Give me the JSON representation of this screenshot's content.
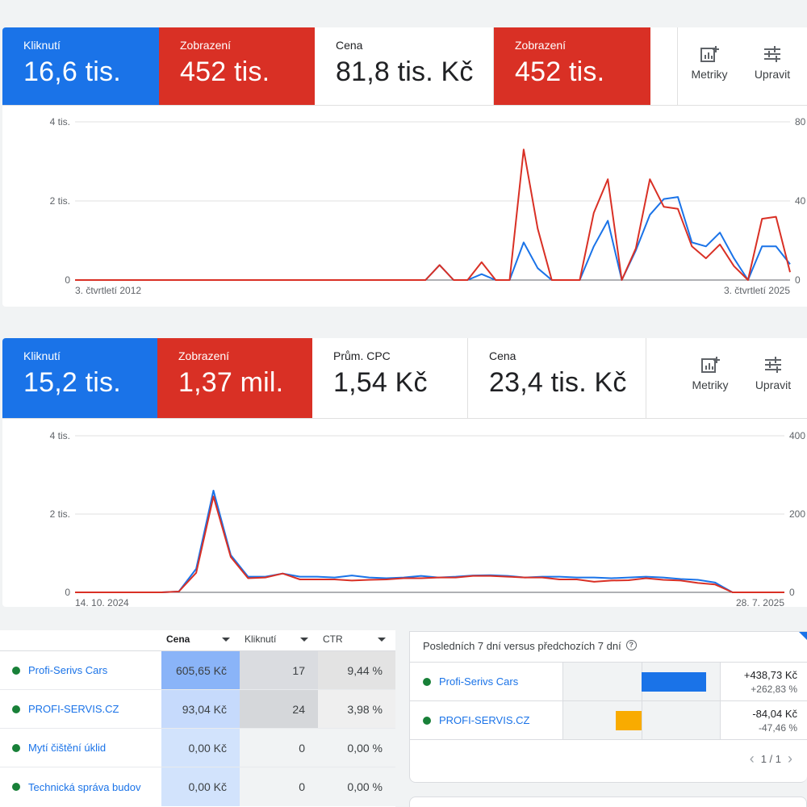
{
  "panel1": {
    "cards": [
      {
        "label": "Kliknutí",
        "value": "16,6 tis.",
        "color": "blue"
      },
      {
        "label": "Zobrazení",
        "value": "452 tis.",
        "color": "red"
      },
      {
        "label": "Cena",
        "value": "81,8 tis. Kč",
        "color": "white"
      },
      {
        "label": "Zobrazení",
        "value": "452 tis.",
        "color": "red"
      }
    ],
    "tools": {
      "metrics": "Metriky",
      "edit": "Upravit"
    }
  },
  "panel2": {
    "cards": [
      {
        "label": "Kliknutí",
        "value": "15,2 tis.",
        "color": "blue"
      },
      {
        "label": "Zobrazení",
        "value": "1,37 mil.",
        "color": "red"
      },
      {
        "label": "Prům. CPC",
        "value": "1,54 Kč",
        "color": "white"
      },
      {
        "label": "Cena",
        "value": "23,4 tis. Kč",
        "color": "white"
      }
    ],
    "tools": {
      "metrics": "Metriky",
      "edit": "Upravit"
    }
  },
  "chart_data": [
    {
      "type": "line",
      "yticks_left": [
        "0",
        "2 tis.",
        "4 tis."
      ],
      "yticks_right": [
        "0",
        "40",
        "80"
      ],
      "xlabels": [
        "3. čtvrtletí 2012",
        "3. čtvrtletí 2025"
      ],
      "ylim": [
        0,
        4000
      ],
      "series": [
        {
          "name": "Kliknutí",
          "color": "#1a73e8",
          "values": [
            0,
            0,
            0,
            0,
            0,
            0,
            0,
            0,
            0,
            0,
            0,
            0,
            0,
            0,
            0,
            0,
            0,
            0,
            0,
            0,
            0,
            0,
            0,
            0,
            0,
            0,
            380,
            0,
            0,
            150,
            0,
            0,
            950,
            300,
            0,
            0,
            0,
            850,
            1500,
            0,
            750,
            1650,
            2050,
            2100,
            950,
            850,
            1200,
            550,
            0,
            850,
            850,
            400
          ]
        },
        {
          "name": "Zobrazení",
          "color": "#d93025",
          "values": [
            0,
            0,
            0,
            0,
            0,
            0,
            0,
            0,
            0,
            0,
            0,
            0,
            0,
            0,
            0,
            0,
            0,
            0,
            0,
            0,
            0,
            0,
            0,
            0,
            0,
            0,
            380,
            0,
            0,
            450,
            0,
            0,
            3300,
            1300,
            0,
            0,
            0,
            1700,
            2550,
            0,
            800,
            2550,
            1850,
            1800,
            850,
            550,
            900,
            350,
            0,
            1550,
            1600,
            200
          ]
        }
      ]
    },
    {
      "type": "line",
      "yticks_left": [
        "0",
        "2 tis.",
        "4 tis."
      ],
      "yticks_right": [
        "0",
        "200",
        "400"
      ],
      "xlabels": [
        "14. 10. 2024",
        "28. 7. 2025"
      ],
      "ylim": [
        0,
        4000
      ],
      "series": [
        {
          "name": "Kliknutí",
          "color": "#1a73e8",
          "values": [
            0,
            0,
            0,
            0,
            0,
            0,
            20,
            600,
            2600,
            950,
            400,
            400,
            480,
            400,
            400,
            380,
            430,
            380,
            360,
            380,
            420,
            380,
            400,
            430,
            440,
            420,
            380,
            400,
            400,
            380,
            380,
            360,
            380,
            400,
            380,
            340,
            320,
            250,
            0,
            0,
            0,
            0
          ]
        },
        {
          "name": "Zobrazení",
          "color": "#d93025",
          "values": [
            0,
            0,
            0,
            0,
            0,
            0,
            20,
            500,
            2450,
            900,
            360,
            380,
            480,
            330,
            330,
            330,
            300,
            320,
            330,
            360,
            360,
            380,
            380,
            420,
            420,
            400,
            380,
            380,
            330,
            330,
            270,
            300,
            310,
            360,
            320,
            300,
            240,
            200,
            0,
            0,
            0,
            0
          ]
        }
      ]
    }
  ],
  "table": {
    "headers": {
      "cost": "Cena",
      "clicks": "Kliknutí",
      "ctr": "CTR"
    },
    "rows": [
      {
        "name": "Profi-Serivs Cars",
        "cost": "605,65 Kč",
        "clicks": "17",
        "ctr": "9,44 %"
      },
      {
        "name": "PROFI-SERVIS.CZ",
        "cost": "93,04 Kč",
        "clicks": "24",
        "ctr": "3,98 %"
      },
      {
        "name": "Mytí čištění úklid",
        "cost": "0,00 Kč",
        "clicks": "0",
        "ctr": "0,00 %"
      },
      {
        "name": "Technická správa budov",
        "cost": "0,00 Kč",
        "clicks": "0",
        "ctr": "0,00 %"
      }
    ]
  },
  "compare": {
    "title": "Posledních 7 dní versus předchozích 7 dní",
    "rows": [
      {
        "name": "Profi-Serivs Cars",
        "delta": "+438,73 Kč",
        "pct": "+262,83 %",
        "bar": 262.83
      },
      {
        "name": "PROFI-SERVIS.CZ",
        "delta": "-84,04 Kč",
        "pct": "-47,46 %",
        "bar": -47.46
      }
    ],
    "pager": "1 / 1"
  },
  "colors": {
    "blue": "#1a73e8",
    "red": "#d93025",
    "orange": "#f9ab00",
    "green": "#188038"
  }
}
